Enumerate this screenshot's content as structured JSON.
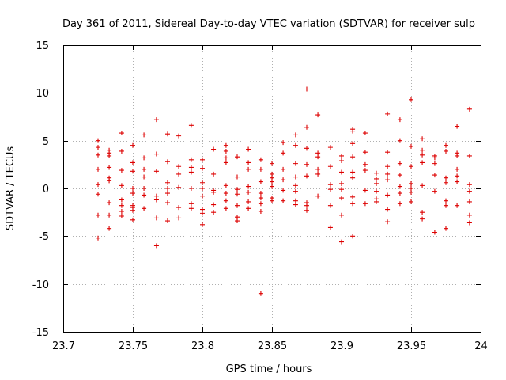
{
  "chart_data": {
    "type": "scatter",
    "title": "Day 361 of 2011, Sidereal Day-to-day VTEC variation (SDTVAR) for receiver sulp",
    "xlabel": "GPS time / hours",
    "ylabel": "SDTVAR / TECUs",
    "xlim": [
      23.7,
      24.0
    ],
    "ylim": [
      -15,
      15
    ],
    "xticks": [
      "23.7",
      "23.75",
      "23.8",
      "23.85",
      "23.9",
      "23.95",
      "24"
    ],
    "yticks": [
      "-15",
      "-10",
      "-5",
      "0",
      "5",
      "10",
      "15"
    ],
    "grid": true,
    "marker": "+",
    "color": "#dd0000",
    "x_columns": [
      23.725,
      23.733,
      23.742,
      23.75,
      23.758,
      23.767,
      23.775,
      23.783,
      23.792,
      23.8,
      23.808,
      23.817,
      23.825,
      23.833,
      23.842,
      23.85,
      23.858,
      23.867,
      23.875,
      23.883,
      23.892,
      23.9,
      23.908,
      23.917,
      23.925,
      23.933,
      23.942,
      23.95,
      23.958,
      23.967,
      23.975,
      23.983,
      23.992
    ],
    "y_columns": [
      [
        5.0,
        4.3,
        3.5,
        2.0,
        0.4,
        -0.6,
        -2.8,
        -5.2
      ],
      [
        4.0,
        3.7,
        3.4,
        2.2,
        1.1,
        0.8,
        -1.5,
        -2.8,
        -4.2
      ],
      [
        5.8,
        3.9,
        1.9,
        0.3,
        -1.2,
        -1.8,
        -2.4,
        -2.9
      ],
      [
        4.5,
        2.7,
        1.8,
        0.0,
        -0.5,
        -1.8,
        -2.0,
        -2.3,
        -3.3
      ],
      [
        5.6,
        3.2,
        2.0,
        1.2,
        0.0,
        -0.7,
        -2.1
      ],
      [
        7.2,
        3.6,
        1.8,
        -0.8,
        -1.2,
        -3.1,
        -6.0
      ],
      [
        5.7,
        2.8,
        0.6,
        0.0,
        -0.5,
        -1.5,
        -3.4
      ],
      [
        5.5,
        2.3,
        1.5,
        0.1,
        -2.0,
        -3.1
      ],
      [
        6.6,
        3.0,
        2.2,
        1.7,
        0.0,
        -1.6,
        -2.1
      ],
      [
        3.0,
        2.1,
        0.6,
        0.0,
        -0.8,
        -2.2,
        -2.6,
        -3.8
      ],
      [
        4.1,
        1.5,
        -0.2,
        -0.4,
        -1.7,
        -2.5
      ],
      [
        4.5,
        3.9,
        3.2,
        2.7,
        0.3,
        -0.5,
        -1.3,
        -2.1
      ],
      [
        3.3,
        1.2,
        -0.1,
        -0.6,
        -1.8,
        -3.0,
        -3.4
      ],
      [
        4.1,
        2.7,
        2.0,
        0.2,
        -0.4,
        -1.4,
        -2.1
      ],
      [
        3.0,
        2.0,
        0.7,
        -0.5,
        -1.0,
        -1.6,
        -2.4,
        -11.0
      ],
      [
        2.6,
        1.5,
        1.1,
        0.7,
        0.2,
        -1.0,
        -1.3
      ],
      [
        4.8,
        3.7,
        2.0,
        0.9,
        -0.2,
        -1.3
      ],
      [
        5.6,
        4.5,
        2.6,
        1.2,
        0.3,
        -0.3,
        -1.3,
        -1.7
      ],
      [
        10.4,
        6.4,
        4.2,
        2.5,
        1.3,
        -1.5,
        -1.8,
        -2.3
      ],
      [
        7.7,
        3.7,
        3.3,
        2.0,
        1.5,
        -0.8
      ],
      [
        4.3,
        2.3,
        0.4,
        -0.1,
        -1.8,
        -4.1
      ],
      [
        3.4,
        2.9,
        1.7,
        0.5,
        -0.1,
        -1.0,
        -2.8,
        -5.6
      ],
      [
        6.2,
        6.0,
        4.7,
        3.3,
        1.7,
        1.1,
        -0.9,
        -1.6,
        -5.0
      ],
      [
        5.8,
        3.8,
        2.5,
        1.9,
        -0.2,
        -1.6
      ],
      [
        1.6,
        1.0,
        0.5,
        -0.3,
        -1.1,
        -1.4
      ],
      [
        7.8,
        3.8,
        2.3,
        1.5,
        0.9,
        -0.7,
        -2.2,
        -3.5
      ],
      [
        7.2,
        5.0,
        2.6,
        1.4,
        0.2,
        -0.5,
        -1.6
      ],
      [
        9.3,
        4.4,
        2.3,
        0.5,
        0.0,
        -0.4,
        -1.4
      ],
      [
        5.2,
        4.0,
        3.5,
        2.7,
        0.3,
        -2.5,
        -3.2
      ],
      [
        3.4,
        3.2,
        2.6,
        1.4,
        -0.3,
        -4.6
      ],
      [
        4.5,
        3.9,
        1.1,
        0.6,
        -1.3,
        -1.8,
        -4.2
      ],
      [
        6.5,
        3.7,
        3.4,
        2.0,
        1.3,
        0.7,
        -1.8
      ],
      [
        8.3,
        3.4,
        0.4,
        -0.3,
        -1.4,
        -2.8,
        -3.6
      ]
    ]
  }
}
